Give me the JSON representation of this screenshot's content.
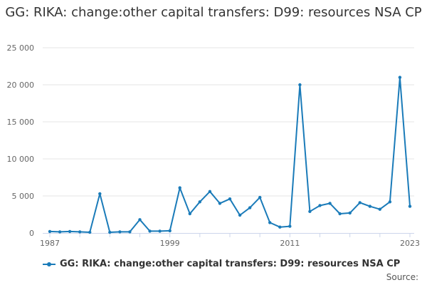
{
  "title": "GG: RIKA: change:other capital transfers: D99: resources NSA CP",
  "legend_label": "GG: RIKA: change:other capital transfers: D99: resources NSA CP",
  "source_label": "Source:",
  "colors": {
    "series": "#1a7bb9",
    "grid": "#e6e6e6",
    "axis": "#ccd6eb"
  },
  "chart_data": {
    "type": "line",
    "title": "GG: RIKA: change:other capital transfers: D99: resources NSA CP",
    "xlabel": "",
    "ylabel": "",
    "x": [
      1987,
      1988,
      1989,
      1990,
      1991,
      1992,
      1993,
      1994,
      1995,
      1996,
      1997,
      1998,
      1999,
      2000,
      2001,
      2002,
      2003,
      2004,
      2005,
      2006,
      2007,
      2008,
      2009,
      2010,
      2011,
      2012,
      2013,
      2014,
      2015,
      2016,
      2017,
      2018,
      2019,
      2020,
      2021,
      2022,
      2023
    ],
    "series": [
      {
        "name": "GG: RIKA: change:other capital transfers: D99: resources NSA CP",
        "values": [
          200,
          150,
          200,
          150,
          100,
          5300,
          100,
          150,
          150,
          1800,
          250,
          250,
          300,
          6100,
          2600,
          4200,
          5600,
          4000,
          4600,
          2400,
          3400,
          4800,
          1400,
          800,
          900,
          20000,
          2900,
          3700,
          4000,
          2600,
          2700,
          4100,
          3600,
          3200,
          4200,
          21000,
          3600
        ]
      }
    ],
    "x_ticks": [
      "1987",
      "1999",
      "2011",
      "2023"
    ],
    "y_ticks": [
      "0",
      "5 000",
      "10 000",
      "15 000",
      "20 000",
      "25 000"
    ],
    "ylim": [
      0,
      25000
    ],
    "xlim": [
      1987,
      2023
    ],
    "grid": true,
    "legend_position": "bottom"
  }
}
